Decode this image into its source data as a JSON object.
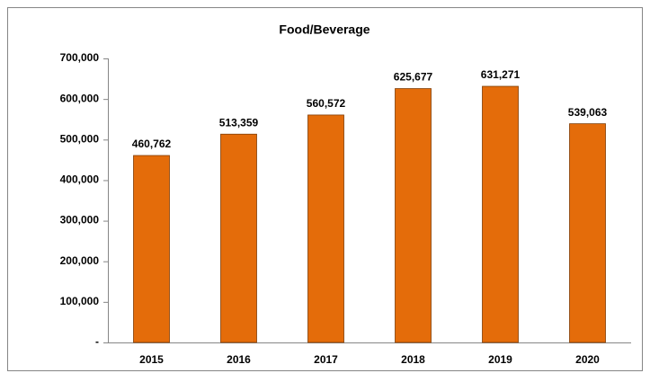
{
  "chart_data": {
    "type": "bar",
    "title": "Food/Beverage",
    "categories": [
      "2015",
      "2016",
      "2017",
      "2018",
      "2019",
      "2020"
    ],
    "values": [
      460762,
      513359,
      560572,
      625677,
      631271,
      539063
    ],
    "value_labels": [
      "460,762",
      "513,359",
      "560,572",
      "625,677",
      "631,271",
      "539,063"
    ],
    "color": "#e46c0a",
    "ylim": [
      0,
      700000
    ],
    "yticks": [
      {
        "value": 0,
        "label": "-"
      },
      {
        "value": 100000,
        "label": "100,000"
      },
      {
        "value": 200000,
        "label": "200,000"
      },
      {
        "value": 300000,
        "label": "300,000"
      },
      {
        "value": 400000,
        "label": "400,000"
      },
      {
        "value": 500000,
        "label": "500,000"
      },
      {
        "value": 600000,
        "label": "600,000"
      },
      {
        "value": 700000,
        "label": "700,000"
      }
    ],
    "grid": false
  }
}
